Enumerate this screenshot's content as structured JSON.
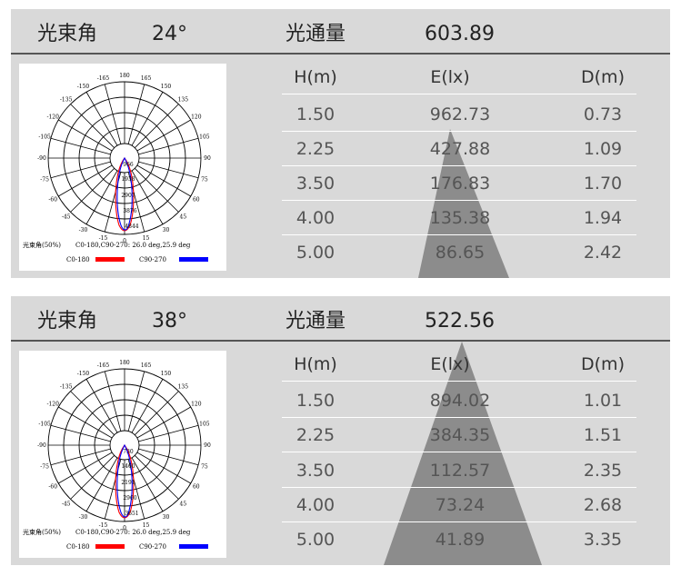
{
  "table_headers": {
    "h": "H(m)",
    "e": "E(lx)",
    "d": "D(m)"
  },
  "panels": [
    {
      "beam_label": "光束角",
      "beam_angle": "24°",
      "flux_label": "光通量",
      "flux_value": "603.89",
      "rows": [
        {
          "h": "1.50",
          "e": "962.73",
          "d": "0.73"
        },
        {
          "h": "2.25",
          "e": "427.88",
          "d": "1.09"
        },
        {
          "h": "3.50",
          "e": "176.83",
          "d": "1.70"
        },
        {
          "h": "4.00",
          "e": "135.38",
          "d": "1.94"
        },
        {
          "h": "5.00",
          "e": "86.65",
          "d": "2.42"
        }
      ],
      "polar": {
        "beam_text": "光束角(50%)",
        "beam_values": "C0-180,C90-270: 26.0 deg,25.9 deg",
        "legend_a": "C0-180",
        "legend_b": "C90-270",
        "color_a": "#ff0000",
        "color_b": "#0000ff",
        "ring_labels": [
          "966",
          "1938",
          "2907",
          "3876",
          "4844"
        ]
      }
    },
    {
      "beam_label": "光束角",
      "beam_angle": "38°",
      "flux_label": "光通量",
      "flux_value": "522.56",
      "rows": [
        {
          "h": "1.50",
          "e": "894.02",
          "d": "1.01"
        },
        {
          "h": "2.25",
          "e": "384.35",
          "d": "1.51"
        },
        {
          "h": "3.50",
          "e": "112.57",
          "d": "2.35"
        },
        {
          "h": "4.00",
          "e": "73.24",
          "d": "2.68"
        },
        {
          "h": "5.00",
          "e": "41.89",
          "d": "3.35"
        }
      ],
      "polar": {
        "beam_text": "光束角(50%)",
        "beam_values": "C0-180,C90-270: 26.0 deg,25.9 deg",
        "legend_a": "C0-180",
        "legend_b": "C90-270",
        "color_a": "#ff0000",
        "color_b": "#0000ff",
        "ring_labels": [
          "730",
          "1460",
          "2191",
          "2960",
          "3651"
        ]
      }
    }
  ],
  "angle_labels": [
    "180",
    "165",
    "150",
    "135",
    "120",
    "105",
    "90",
    "75",
    "60",
    "45",
    "30",
    "15",
    "0",
    "-15",
    "-30",
    "-45",
    "-60",
    "-75",
    "-90",
    "-105",
    "-120",
    "-135",
    "-150",
    "-165"
  ]
}
